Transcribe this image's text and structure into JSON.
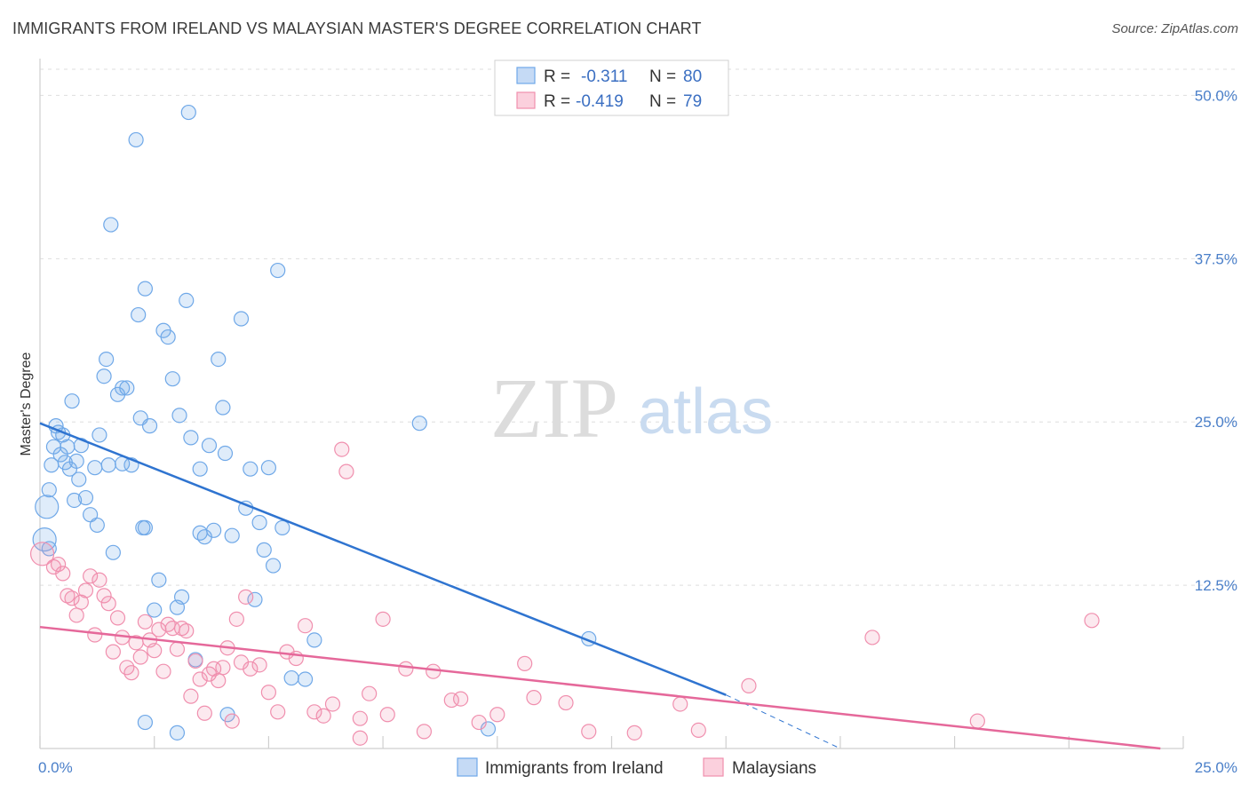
{
  "header": {
    "title": "IMMIGRANTS FROM IRELAND VS MALAYSIAN MASTER'S DEGREE CORRELATION CHART",
    "source": "Source: ZipAtlas.com"
  },
  "watermark": {
    "zip": "ZIP",
    "atlas": "atlas"
  },
  "legend": {
    "r_label": "R =",
    "n_label": "N =",
    "rows": [
      {
        "r": "-0.311",
        "n": "80",
        "color": "#6fa8e8"
      },
      {
        "r": "-0.419",
        "n": "79",
        "color": "#f08fae"
      }
    ]
  },
  "chart_data": {
    "type": "scatter",
    "ylabel": "Master's Degree",
    "xlim": [
      0,
      25
    ],
    "ylim": [
      0,
      52
    ],
    "x_tick_labels": [
      "0.0%",
      "25.0%"
    ],
    "y_ticks": [
      12.5,
      25.0,
      37.5,
      50.0
    ],
    "y_tick_labels": [
      "12.5%",
      "25.0%",
      "37.5%",
      "50.0%"
    ],
    "grid": true,
    "series": [
      {
        "name": "Immigrants from Ireland",
        "color": "#6fa8e8",
        "trend": {
          "x": [
            0,
            15
          ],
          "y": [
            24.9,
            4.1
          ],
          "dash_to": [
            17.5,
            0.0
          ]
        },
        "points": [
          [
            0.1,
            16.0
          ],
          [
            0.15,
            18.5
          ],
          [
            0.2,
            19.8
          ],
          [
            0.25,
            21.7
          ],
          [
            0.3,
            23.1
          ],
          [
            0.35,
            24.7
          ],
          [
            0.4,
            24.2
          ],
          [
            0.45,
            22.5
          ],
          [
            0.5,
            24.0
          ],
          [
            0.55,
            21.9
          ],
          [
            0.6,
            23.1
          ],
          [
            0.65,
            21.4
          ],
          [
            0.7,
            26.6
          ],
          [
            0.75,
            19.0
          ],
          [
            0.8,
            22.0
          ],
          [
            0.85,
            20.6
          ],
          [
            0.9,
            23.2
          ],
          [
            1.0,
            19.2
          ],
          [
            1.1,
            17.9
          ],
          [
            1.2,
            21.5
          ],
          [
            1.25,
            17.1
          ],
          [
            1.3,
            24.0
          ],
          [
            1.4,
            28.5
          ],
          [
            1.45,
            29.8
          ],
          [
            1.5,
            21.7
          ],
          [
            1.6,
            15.0
          ],
          [
            1.7,
            27.1
          ],
          [
            1.8,
            21.8
          ],
          [
            1.9,
            27.6
          ],
          [
            2.0,
            21.7
          ],
          [
            2.1,
            46.6
          ],
          [
            2.15,
            33.2
          ],
          [
            2.2,
            25.3
          ],
          [
            2.25,
            16.9
          ],
          [
            2.3,
            35.2
          ],
          [
            2.4,
            24.7
          ],
          [
            2.5,
            10.6
          ],
          [
            2.6,
            12.9
          ],
          [
            2.7,
            32.0
          ],
          [
            2.8,
            31.5
          ],
          [
            2.9,
            28.3
          ],
          [
            3.0,
            10.8
          ],
          [
            3.05,
            25.5
          ],
          [
            3.1,
            11.6
          ],
          [
            3.2,
            34.3
          ],
          [
            3.3,
            23.8
          ],
          [
            3.4,
            6.8
          ],
          [
            3.5,
            16.5
          ],
          [
            3.6,
            16.2
          ],
          [
            3.7,
            23.2
          ],
          [
            3.8,
            16.7
          ],
          [
            3.9,
            29.8
          ],
          [
            4.0,
            26.1
          ],
          [
            4.05,
            22.6
          ],
          [
            4.1,
            2.6
          ],
          [
            4.4,
            32.9
          ],
          [
            4.5,
            18.4
          ],
          [
            4.6,
            21.4
          ],
          [
            4.7,
            11.4
          ],
          [
            4.8,
            17.3
          ],
          [
            4.9,
            15.2
          ],
          [
            5.0,
            21.5
          ],
          [
            5.1,
            14.0
          ],
          [
            5.2,
            36.6
          ],
          [
            5.3,
            16.9
          ],
          [
            5.5,
            5.4
          ],
          [
            5.8,
            5.3
          ],
          [
            6.0,
            8.3
          ],
          [
            3.0,
            1.2
          ],
          [
            2.3,
            2.0
          ],
          [
            3.25,
            48.7
          ],
          [
            1.55,
            40.1
          ],
          [
            8.3,
            24.9
          ],
          [
            12.0,
            8.4
          ],
          [
            9.8,
            1.5
          ],
          [
            0.2,
            15.3
          ],
          [
            1.8,
            27.6
          ],
          [
            2.3,
            16.9
          ],
          [
            4.2,
            16.3
          ],
          [
            3.5,
            21.4
          ]
        ]
      },
      {
        "name": "Malaysians",
        "color": "#f08fae",
        "trend": {
          "x": [
            0,
            24.5
          ],
          "y": [
            9.3,
            0.0
          ]
        },
        "points": [
          [
            0.05,
            14.9
          ],
          [
            0.3,
            13.9
          ],
          [
            0.4,
            14.1
          ],
          [
            0.5,
            13.4
          ],
          [
            0.6,
            11.7
          ],
          [
            0.7,
            11.5
          ],
          [
            0.8,
            10.2
          ],
          [
            0.9,
            11.2
          ],
          [
            1.0,
            12.1
          ],
          [
            1.1,
            13.2
          ],
          [
            1.2,
            8.7
          ],
          [
            1.3,
            12.9
          ],
          [
            1.4,
            11.7
          ],
          [
            1.5,
            11.1
          ],
          [
            1.6,
            7.4
          ],
          [
            1.7,
            10.0
          ],
          [
            1.8,
            8.5
          ],
          [
            1.9,
            6.2
          ],
          [
            2.0,
            5.8
          ],
          [
            2.1,
            8.1
          ],
          [
            2.2,
            7.0
          ],
          [
            2.3,
            9.7
          ],
          [
            2.4,
            8.3
          ],
          [
            2.5,
            7.5
          ],
          [
            2.6,
            9.1
          ],
          [
            2.7,
            5.9
          ],
          [
            2.8,
            9.5
          ],
          [
            2.9,
            9.2
          ],
          [
            3.0,
            7.6
          ],
          [
            3.1,
            9.2
          ],
          [
            3.2,
            9.0
          ],
          [
            3.3,
            4.0
          ],
          [
            3.4,
            6.7
          ],
          [
            3.5,
            5.3
          ],
          [
            3.6,
            2.7
          ],
          [
            3.7,
            5.7
          ],
          [
            3.8,
            6.1
          ],
          [
            3.9,
            5.2
          ],
          [
            4.0,
            6.2
          ],
          [
            4.1,
            7.7
          ],
          [
            4.2,
            2.1
          ],
          [
            4.3,
            9.9
          ],
          [
            4.4,
            6.6
          ],
          [
            4.5,
            11.6
          ],
          [
            4.6,
            6.1
          ],
          [
            4.8,
            6.4
          ],
          [
            5.0,
            4.3
          ],
          [
            5.2,
            2.8
          ],
          [
            5.4,
            7.4
          ],
          [
            5.6,
            6.9
          ],
          [
            5.8,
            9.4
          ],
          [
            6.0,
            2.8
          ],
          [
            6.2,
            2.5
          ],
          [
            6.4,
            3.4
          ],
          [
            6.6,
            22.9
          ],
          [
            6.7,
            21.2
          ],
          [
            7.0,
            2.3
          ],
          [
            7.2,
            4.2
          ],
          [
            7.5,
            9.9
          ],
          [
            7.6,
            2.6
          ],
          [
            8.0,
            6.1
          ],
          [
            8.4,
            1.3
          ],
          [
            8.6,
            5.9
          ],
          [
            9.0,
            3.7
          ],
          [
            9.2,
            3.8
          ],
          [
            9.6,
            2.0
          ],
          [
            10.0,
            2.6
          ],
          [
            10.6,
            6.5
          ],
          [
            10.8,
            3.9
          ],
          [
            11.5,
            3.5
          ],
          [
            12.0,
            1.3
          ],
          [
            13.0,
            1.2
          ],
          [
            14.0,
            3.4
          ],
          [
            14.4,
            1.4
          ],
          [
            15.5,
            4.8
          ],
          [
            18.2,
            8.5
          ],
          [
            20.5,
            2.1
          ],
          [
            23.0,
            9.8
          ],
          [
            7.0,
            0.8
          ]
        ]
      }
    ]
  },
  "bottom_legend": [
    {
      "label": "Immigrants from Ireland",
      "color": "#6fa8e8"
    },
    {
      "label": "Malaysians",
      "color": "#f08fae"
    }
  ]
}
